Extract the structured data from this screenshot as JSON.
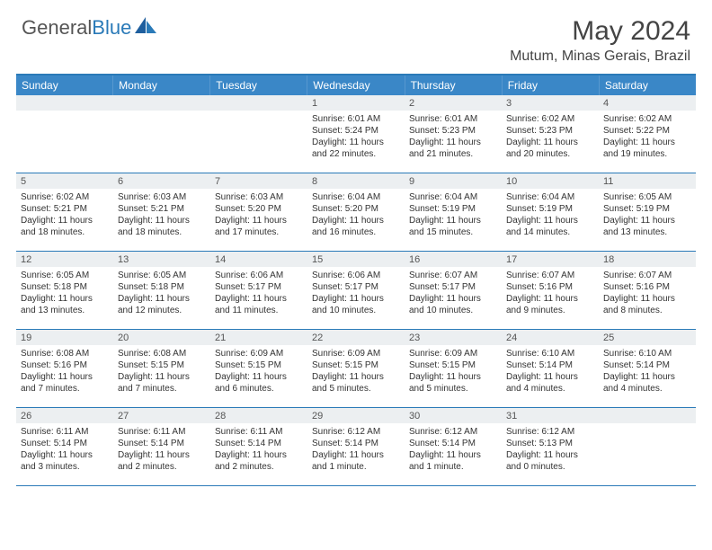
{
  "logo": {
    "text_general": "General",
    "text_blue": "Blue"
  },
  "title": {
    "month": "May 2024",
    "location": "Mutum, Minas Gerais, Brazil"
  },
  "colors": {
    "header_bar": "#3a87c7",
    "header_border": "#2a7ab8",
    "daynum_bg": "#eceff1",
    "text": "#333333",
    "logo_gray": "#555555",
    "logo_blue": "#2a7ab8",
    "background": "#ffffff"
  },
  "day_headers": [
    "Sunday",
    "Monday",
    "Tuesday",
    "Wednesday",
    "Thursday",
    "Friday",
    "Saturday"
  ],
  "weeks": [
    [
      {
        "n": "",
        "sr": "",
        "ss": "",
        "dl": ""
      },
      {
        "n": "",
        "sr": "",
        "ss": "",
        "dl": ""
      },
      {
        "n": "",
        "sr": "",
        "ss": "",
        "dl": ""
      },
      {
        "n": "1",
        "sr": "Sunrise: 6:01 AM",
        "ss": "Sunset: 5:24 PM",
        "dl": "Daylight: 11 hours and 22 minutes."
      },
      {
        "n": "2",
        "sr": "Sunrise: 6:01 AM",
        "ss": "Sunset: 5:23 PM",
        "dl": "Daylight: 11 hours and 21 minutes."
      },
      {
        "n": "3",
        "sr": "Sunrise: 6:02 AM",
        "ss": "Sunset: 5:23 PM",
        "dl": "Daylight: 11 hours and 20 minutes."
      },
      {
        "n": "4",
        "sr": "Sunrise: 6:02 AM",
        "ss": "Sunset: 5:22 PM",
        "dl": "Daylight: 11 hours and 19 minutes."
      }
    ],
    [
      {
        "n": "5",
        "sr": "Sunrise: 6:02 AM",
        "ss": "Sunset: 5:21 PM",
        "dl": "Daylight: 11 hours and 18 minutes."
      },
      {
        "n": "6",
        "sr": "Sunrise: 6:03 AM",
        "ss": "Sunset: 5:21 PM",
        "dl": "Daylight: 11 hours and 18 minutes."
      },
      {
        "n": "7",
        "sr": "Sunrise: 6:03 AM",
        "ss": "Sunset: 5:20 PM",
        "dl": "Daylight: 11 hours and 17 minutes."
      },
      {
        "n": "8",
        "sr": "Sunrise: 6:04 AM",
        "ss": "Sunset: 5:20 PM",
        "dl": "Daylight: 11 hours and 16 minutes."
      },
      {
        "n": "9",
        "sr": "Sunrise: 6:04 AM",
        "ss": "Sunset: 5:19 PM",
        "dl": "Daylight: 11 hours and 15 minutes."
      },
      {
        "n": "10",
        "sr": "Sunrise: 6:04 AM",
        "ss": "Sunset: 5:19 PM",
        "dl": "Daylight: 11 hours and 14 minutes."
      },
      {
        "n": "11",
        "sr": "Sunrise: 6:05 AM",
        "ss": "Sunset: 5:19 PM",
        "dl": "Daylight: 11 hours and 13 minutes."
      }
    ],
    [
      {
        "n": "12",
        "sr": "Sunrise: 6:05 AM",
        "ss": "Sunset: 5:18 PM",
        "dl": "Daylight: 11 hours and 13 minutes."
      },
      {
        "n": "13",
        "sr": "Sunrise: 6:05 AM",
        "ss": "Sunset: 5:18 PM",
        "dl": "Daylight: 11 hours and 12 minutes."
      },
      {
        "n": "14",
        "sr": "Sunrise: 6:06 AM",
        "ss": "Sunset: 5:17 PM",
        "dl": "Daylight: 11 hours and 11 minutes."
      },
      {
        "n": "15",
        "sr": "Sunrise: 6:06 AM",
        "ss": "Sunset: 5:17 PM",
        "dl": "Daylight: 11 hours and 10 minutes."
      },
      {
        "n": "16",
        "sr": "Sunrise: 6:07 AM",
        "ss": "Sunset: 5:17 PM",
        "dl": "Daylight: 11 hours and 10 minutes."
      },
      {
        "n": "17",
        "sr": "Sunrise: 6:07 AM",
        "ss": "Sunset: 5:16 PM",
        "dl": "Daylight: 11 hours and 9 minutes."
      },
      {
        "n": "18",
        "sr": "Sunrise: 6:07 AM",
        "ss": "Sunset: 5:16 PM",
        "dl": "Daylight: 11 hours and 8 minutes."
      }
    ],
    [
      {
        "n": "19",
        "sr": "Sunrise: 6:08 AM",
        "ss": "Sunset: 5:16 PM",
        "dl": "Daylight: 11 hours and 7 minutes."
      },
      {
        "n": "20",
        "sr": "Sunrise: 6:08 AM",
        "ss": "Sunset: 5:15 PM",
        "dl": "Daylight: 11 hours and 7 minutes."
      },
      {
        "n": "21",
        "sr": "Sunrise: 6:09 AM",
        "ss": "Sunset: 5:15 PM",
        "dl": "Daylight: 11 hours and 6 minutes."
      },
      {
        "n": "22",
        "sr": "Sunrise: 6:09 AM",
        "ss": "Sunset: 5:15 PM",
        "dl": "Daylight: 11 hours and 5 minutes."
      },
      {
        "n": "23",
        "sr": "Sunrise: 6:09 AM",
        "ss": "Sunset: 5:15 PM",
        "dl": "Daylight: 11 hours and 5 minutes."
      },
      {
        "n": "24",
        "sr": "Sunrise: 6:10 AM",
        "ss": "Sunset: 5:14 PM",
        "dl": "Daylight: 11 hours and 4 minutes."
      },
      {
        "n": "25",
        "sr": "Sunrise: 6:10 AM",
        "ss": "Sunset: 5:14 PM",
        "dl": "Daylight: 11 hours and 4 minutes."
      }
    ],
    [
      {
        "n": "26",
        "sr": "Sunrise: 6:11 AM",
        "ss": "Sunset: 5:14 PM",
        "dl": "Daylight: 11 hours and 3 minutes."
      },
      {
        "n": "27",
        "sr": "Sunrise: 6:11 AM",
        "ss": "Sunset: 5:14 PM",
        "dl": "Daylight: 11 hours and 2 minutes."
      },
      {
        "n": "28",
        "sr": "Sunrise: 6:11 AM",
        "ss": "Sunset: 5:14 PM",
        "dl": "Daylight: 11 hours and 2 minutes."
      },
      {
        "n": "29",
        "sr": "Sunrise: 6:12 AM",
        "ss": "Sunset: 5:14 PM",
        "dl": "Daylight: 11 hours and 1 minute."
      },
      {
        "n": "30",
        "sr": "Sunrise: 6:12 AM",
        "ss": "Sunset: 5:14 PM",
        "dl": "Daylight: 11 hours and 1 minute."
      },
      {
        "n": "31",
        "sr": "Sunrise: 6:12 AM",
        "ss": "Sunset: 5:13 PM",
        "dl": "Daylight: 11 hours and 0 minutes."
      },
      {
        "n": "",
        "sr": "",
        "ss": "",
        "dl": ""
      }
    ]
  ]
}
